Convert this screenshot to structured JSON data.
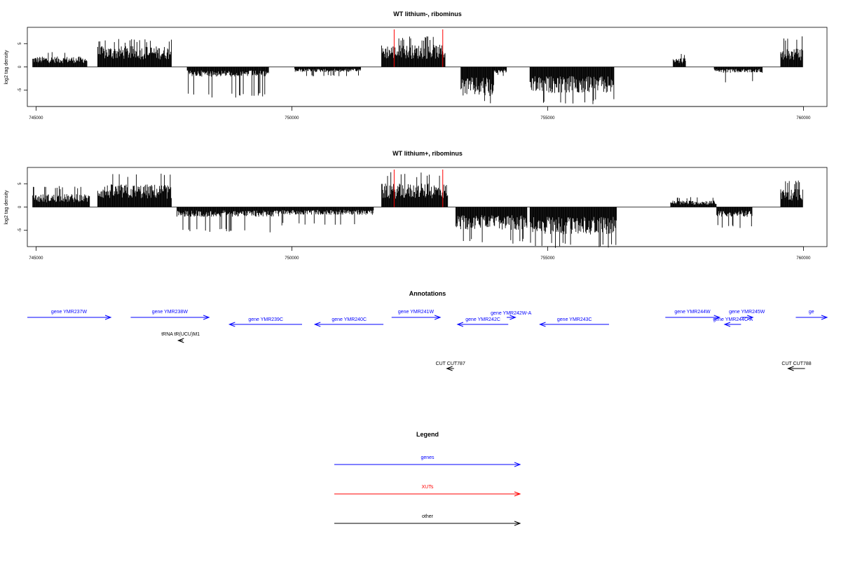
{
  "chart_data": [
    {
      "type": "bar",
      "title": "WT lithium-, ribominus",
      "ylabel": "log2 tag density",
      "xlim": [
        744830,
        760460
      ],
      "ylim": [
        -8.5,
        8.5
      ],
      "x_ticks": [
        745000,
        750000,
        755000,
        760000
      ],
      "y_ticks": [
        -5,
        0,
        5
      ],
      "xut_markers": [
        752000,
        752950
      ],
      "segments": [
        {
          "strand": "+",
          "start": 744930,
          "end": 746000,
          "mean": 1.6,
          "max": 3.4
        },
        {
          "strand": "+",
          "start": 746200,
          "end": 747650,
          "mean": 3.2,
          "max": 6.0
        },
        {
          "strand": "-",
          "start": 747950,
          "end": 749550,
          "mean": -1.5,
          "max": -6.6
        },
        {
          "strand": "-",
          "start": 750050,
          "end": 751350,
          "mean": -0.8,
          "max": -2.0
        },
        {
          "strand": "+",
          "start": 751750,
          "end": 753000,
          "mean": 3.4,
          "max": 6.6
        },
        {
          "strand": "-",
          "start": 753300,
          "end": 753950,
          "mean": -4.5,
          "max": -8.2
        },
        {
          "strand": "-",
          "start": 753950,
          "end": 754200,
          "mean": -1.0,
          "max": -2.0
        },
        {
          "strand": "-",
          "start": 754650,
          "end": 756300,
          "mean": -4.0,
          "max": -8.0
        },
        {
          "strand": "+",
          "start": 757450,
          "end": 757700,
          "mean": 1.4,
          "max": 3.0
        },
        {
          "strand": "-",
          "start": 758250,
          "end": 759200,
          "mean": -0.9,
          "max": -3.5
        },
        {
          "strand": "+",
          "start": 759550,
          "end": 759990,
          "mean": 2.8,
          "max": 6.6
        }
      ]
    },
    {
      "type": "bar",
      "title": "WT lithium+, ribominus",
      "ylabel": "log2 tag density",
      "xlim": [
        744830,
        760460
      ],
      "ylim": [
        -8.5,
        8.5
      ],
      "x_ticks": [
        745000,
        750000,
        755000,
        760000
      ],
      "y_ticks": [
        -5,
        0,
        5
      ],
      "xut_markers": [
        752000,
        752950
      ],
      "segments": [
        {
          "strand": "+",
          "start": 744930,
          "end": 746050,
          "mean": 2.0,
          "max": 4.5
        },
        {
          "strand": "+",
          "start": 746200,
          "end": 747650,
          "mean": 3.5,
          "max": 7.2
        },
        {
          "strand": "-",
          "start": 747750,
          "end": 749800,
          "mean": -1.5,
          "max": -5.5
        },
        {
          "strand": "-",
          "start": 749800,
          "end": 751600,
          "mean": -1.2,
          "max": -4.0
        },
        {
          "strand": "+",
          "start": 751750,
          "end": 753050,
          "mean": 3.6,
          "max": 7.5
        },
        {
          "strand": "-",
          "start": 753200,
          "end": 754600,
          "mean": -3.5,
          "max": -8.0
        },
        {
          "strand": "-",
          "start": 754650,
          "end": 756350,
          "mean": -4.2,
          "max": -8.8
        },
        {
          "strand": "+",
          "start": 757400,
          "end": 758300,
          "mean": 1.0,
          "max": 2.2
        },
        {
          "strand": "-",
          "start": 758300,
          "end": 759000,
          "mean": -1.5,
          "max": -4.5
        },
        {
          "strand": "+",
          "start": 759550,
          "end": 759990,
          "mean": 2.8,
          "max": 5.8
        }
      ]
    }
  ],
  "annotations": {
    "title": "Annotations",
    "features": [
      {
        "label": "gene YMR237W",
        "start": 744830,
        "end": 746460,
        "strand": "+",
        "row": 1,
        "color": "#0000ff"
      },
      {
        "label": "gene YMR238W",
        "start": 746850,
        "end": 748380,
        "strand": "+",
        "row": 1,
        "color": "#0000ff"
      },
      {
        "label": "gene YMR239C",
        "start": 748780,
        "end": 750200,
        "strand": "-",
        "row": 2,
        "color": "#0000ff"
      },
      {
        "label": "gene YMR240C",
        "start": 750450,
        "end": 751790,
        "strand": "-",
        "row": 2,
        "color": "#0000ff"
      },
      {
        "label": "gene YMR241W",
        "start": 751950,
        "end": 752900,
        "strand": "+",
        "row": 1,
        "color": "#0000ff"
      },
      {
        "label": "gene YMR242C",
        "start": 753240,
        "end": 754230,
        "strand": "-",
        "row": 2,
        "color": "#0000ff"
      },
      {
        "label": "gene YMR242W-A",
        "start": 754200,
        "end": 754370,
        "strand": "+",
        "row": 0,
        "color": "#0000ff"
      },
      {
        "label": "gene YMR243C",
        "start": 754850,
        "end": 756200,
        "strand": "-",
        "row": 2,
        "color": "#0000ff"
      },
      {
        "label": "gene YMR244W",
        "start": 757300,
        "end": 758360,
        "strand": "+",
        "row": 1,
        "color": "#0000ff"
      },
      {
        "label": "gene YMR245W",
        "start": 758780,
        "end": 759010,
        "strand": "+",
        "row": 1,
        "color": "#0000ff"
      },
      {
        "label": "gene YMR244C-A",
        "start": 758460,
        "end": 758780,
        "strand": "-",
        "row": 2,
        "color": "#0000ff"
      },
      {
        "label": "ge",
        "start": 759850,
        "end": 760460,
        "strand": "+",
        "row": 1,
        "color": "#0000ff"
      },
      {
        "label": "tRNA tR(UCU)M1",
        "start": 747780,
        "end": 747870,
        "strand": "-",
        "row": 3,
        "color": "#000000"
      },
      {
        "label": "CUT CUT787",
        "start": 753030,
        "end": 753170,
        "strand": "-",
        "row": 4,
        "color": "#000000"
      },
      {
        "label": "CUT CUT788",
        "start": 759700,
        "end": 760030,
        "strand": "-",
        "row": 4,
        "color": "#000000"
      }
    ]
  },
  "legend": {
    "title": "Legend",
    "items": [
      {
        "label": "genes",
        "color": "#0000ff"
      },
      {
        "label": "XUTs",
        "color": "#ff0000"
      },
      {
        "label": "other",
        "color": "#000000"
      }
    ]
  }
}
